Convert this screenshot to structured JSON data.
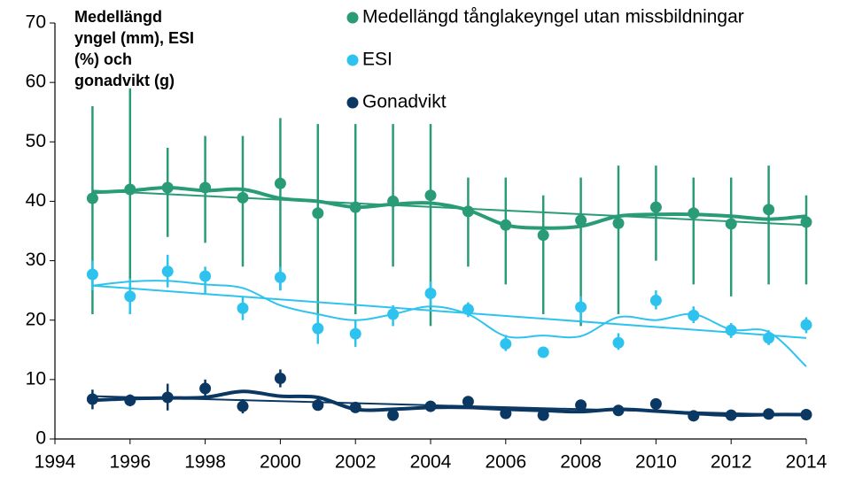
{
  "chart_data": {
    "type": "scatter",
    "ylabel_lines": [
      "Medellängd",
      "yngel (mm), ESI",
      "(%) och",
      "gonadvikt (g)"
    ],
    "x": [
      1995,
      1996,
      1997,
      1998,
      1999,
      2000,
      2001,
      2002,
      2003,
      2004,
      2005,
      2006,
      2007,
      2008,
      2009,
      2010,
      2011,
      2012,
      2013,
      2014
    ],
    "xlim": [
      1994,
      2014
    ],
    "xticks": [
      1994,
      1996,
      1998,
      2000,
      2002,
      2004,
      2006,
      2008,
      2010,
      2012,
      2014
    ],
    "ylim": [
      0,
      70
    ],
    "yticks": [
      0,
      10,
      20,
      30,
      40,
      50,
      60,
      70
    ],
    "series": [
      {
        "name": "Medellängd tånglakeyngel utan missbildningar",
        "color": "#2a9b77",
        "values": [
          40.5,
          42,
          42.3,
          42.3,
          40.6,
          43,
          38,
          39,
          40,
          41,
          38.3,
          36,
          34.3,
          36.8,
          36.3,
          39,
          38,
          36.2,
          38.6,
          36.5
        ],
        "lower": [
          21,
          21,
          34,
          33,
          29,
          25,
          21,
          21,
          29,
          19,
          29,
          26,
          21,
          19,
          21,
          30,
          26,
          24,
          26,
          26
        ],
        "upper": [
          56,
          59,
          49,
          51,
          51,
          54,
          53,
          53,
          53,
          53,
          44,
          44,
          41,
          44,
          46,
          46,
          44,
          44,
          46,
          41
        ],
        "smooth": [
          41.5,
          41.8,
          42.3,
          41.8,
          42,
          40.5,
          40,
          39,
          39.5,
          39.7,
          38.5,
          36,
          35.5,
          35.8,
          37.5,
          37.8,
          37.8,
          37.5,
          37,
          37.5
        ],
        "trend": [
          41.8,
          36
        ]
      },
      {
        "name": "ESI",
        "color": "#2ec3ee",
        "values": [
          27.7,
          24,
          28.2,
          27.4,
          22,
          27.2,
          18.6,
          17.7,
          21,
          24.5,
          21.8,
          16,
          14.6,
          22.2,
          16.2,
          23.3,
          20.8,
          18.3,
          17,
          19.2
        ],
        "lower": [
          25,
          21,
          25.5,
          24.5,
          20,
          25,
          16,
          15.5,
          19,
          22.5,
          20.5,
          14.8,
          14,
          20,
          15,
          21.8,
          19.5,
          17,
          15.8,
          17.8
        ],
        "upper": [
          30,
          27,
          31,
          29,
          24,
          29,
          21,
          20,
          22.5,
          26.5,
          23,
          17.5,
          15.2,
          24,
          17.8,
          25,
          22.3,
          19.5,
          18.3,
          20.5
        ],
        "smooth": [
          25.8,
          26.5,
          26.6,
          26,
          25.4,
          22.5,
          21,
          20,
          21,
          22.3,
          21,
          17.3,
          17.4,
          17.3,
          20.5,
          20,
          21,
          18.4,
          18,
          12.2
        ],
        "trend": [
          25.8,
          17
        ]
      },
      {
        "name": "Gonadvikt",
        "color": "#0b3763",
        "values": [
          6.7,
          6.5,
          7,
          8.5,
          5.5,
          10.2,
          5.7,
          5.3,
          4,
          5.5,
          6.3,
          4.3,
          4,
          5.7,
          4.8,
          5.9,
          3.9,
          4,
          4.2,
          4.1
        ],
        "lower": [
          5,
          5.5,
          4.8,
          7,
          4.3,
          8.7,
          4.8,
          4.5,
          3.5,
          5,
          5.5,
          3.8,
          3.5,
          5.2,
          4.3,
          5.4,
          3.4,
          3.6,
          3.8,
          3.7
        ],
        "upper": [
          8.3,
          7.5,
          9.3,
          10,
          6.7,
          11.7,
          6.8,
          6,
          4.5,
          6,
          7,
          4.8,
          4.5,
          6.2,
          5.3,
          6.4,
          4.4,
          4.4,
          4.6,
          4.5
        ],
        "smooth": [
          6.5,
          6.8,
          6.9,
          7,
          8,
          7.2,
          7,
          5,
          5,
          5.3,
          5.3,
          5,
          4.8,
          4.6,
          5,
          4.7,
          4.3,
          4,
          4.1,
          4.1
        ],
        "trend": [
          7.2,
          4
        ]
      }
    ]
  }
}
